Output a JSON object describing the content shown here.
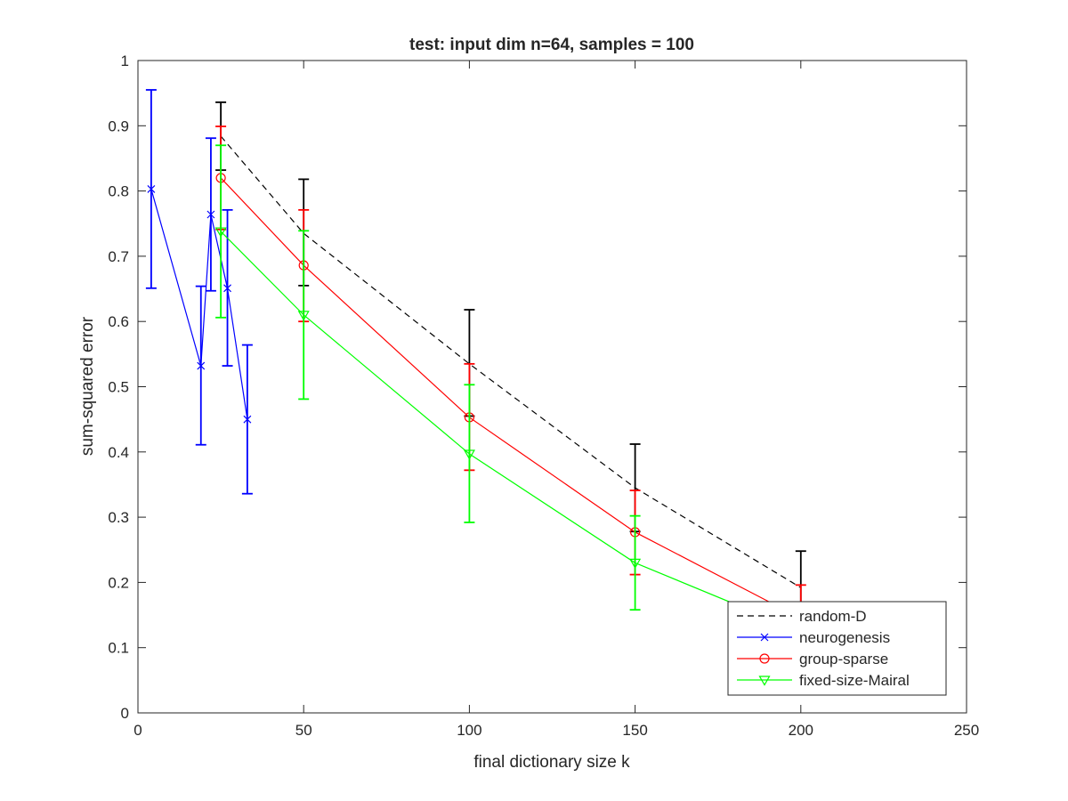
{
  "chart_data": {
    "type": "line",
    "title": "test: input dim n=64, samples = 100",
    "xlabel": "final dictionary size k",
    "ylabel": "sum-squared error",
    "xlim": [
      0,
      250
    ],
    "ylim": [
      0,
      1
    ],
    "xticks": [
      0,
      50,
      100,
      150,
      200,
      250
    ],
    "yticks": [
      0,
      0.1,
      0.2,
      0.3,
      0.4,
      0.5,
      0.6,
      0.7,
      0.8,
      0.9,
      1
    ],
    "xtick_labels": [
      "0",
      "50",
      "100",
      "150",
      "200",
      "250"
    ],
    "ytick_labels": [
      "0",
      "0.1",
      "0.2",
      "0.3",
      "0.4",
      "0.5",
      "0.6",
      "0.7",
      "0.8",
      "0.9",
      "1"
    ],
    "grid": false,
    "legend_position": "bottom-right",
    "series": [
      {
        "name": "random-D",
        "color": "#000000",
        "line_style": "dashed",
        "marker": "none",
        "points": [
          {
            "x": 25,
            "y": 0.884,
            "err_low": 0.832,
            "err_high": 0.936
          },
          {
            "x": 50,
            "y": 0.735,
            "err_low": 0.655,
            "err_high": 0.818
          },
          {
            "x": 100,
            "y": 0.535,
            "err_low": 0.455,
            "err_high": 0.618
          },
          {
            "x": 150,
            "y": 0.345,
            "err_low": 0.278,
            "err_high": 0.412
          },
          {
            "x": 200,
            "y": 0.192,
            "err_low": 0.136,
            "err_high": 0.248
          }
        ]
      },
      {
        "name": "neurogenesis",
        "color": "#0000ff",
        "line_style": "solid",
        "marker": "x",
        "points": [
          {
            "x": 4,
            "y": 0.803,
            "err_low": 0.651,
            "err_high": 0.955
          },
          {
            "x": 19,
            "y": 0.532,
            "err_low": 0.411,
            "err_high": 0.654
          },
          {
            "x": 22,
            "y": 0.764,
            "err_low": 0.647,
            "err_high": 0.881
          },
          {
            "x": 27,
            "y": 0.651,
            "err_low": 0.532,
            "err_high": 0.771
          },
          {
            "x": 33,
            "y": 0.45,
            "err_low": 0.336,
            "err_high": 0.564
          }
        ]
      },
      {
        "name": "group-sparse",
        "color": "#ff0000",
        "line_style": "solid",
        "marker": "circle",
        "points": [
          {
            "x": 25,
            "y": 0.82,
            "err_low": 0.741,
            "err_high": 0.899
          },
          {
            "x": 50,
            "y": 0.686,
            "err_low": 0.6,
            "err_high": 0.771
          },
          {
            "x": 100,
            "y": 0.453,
            "err_low": 0.372,
            "err_high": 0.535
          },
          {
            "x": 150,
            "y": 0.277,
            "err_low": 0.212,
            "err_high": 0.341
          },
          {
            "x": 200,
            "y": 0.145,
            "err_low": 0.094,
            "err_high": 0.196
          }
        ]
      },
      {
        "name": "fixed-size-Mairal",
        "color": "#00ff00",
        "line_style": "solid",
        "marker": "triangle-down",
        "points": [
          {
            "x": 25,
            "y": 0.738,
            "err_low": 0.606,
            "err_high": 0.87
          },
          {
            "x": 50,
            "y": 0.61,
            "err_low": 0.481,
            "err_high": 0.739
          },
          {
            "x": 100,
            "y": 0.397,
            "err_low": 0.292,
            "err_high": 0.503
          },
          {
            "x": 150,
            "y": 0.23,
            "err_low": 0.158,
            "err_high": 0.302
          },
          {
            "x": 200,
            "y": 0.125,
            "err_low": 0.085,
            "err_high": 0.165
          }
        ]
      }
    ]
  }
}
